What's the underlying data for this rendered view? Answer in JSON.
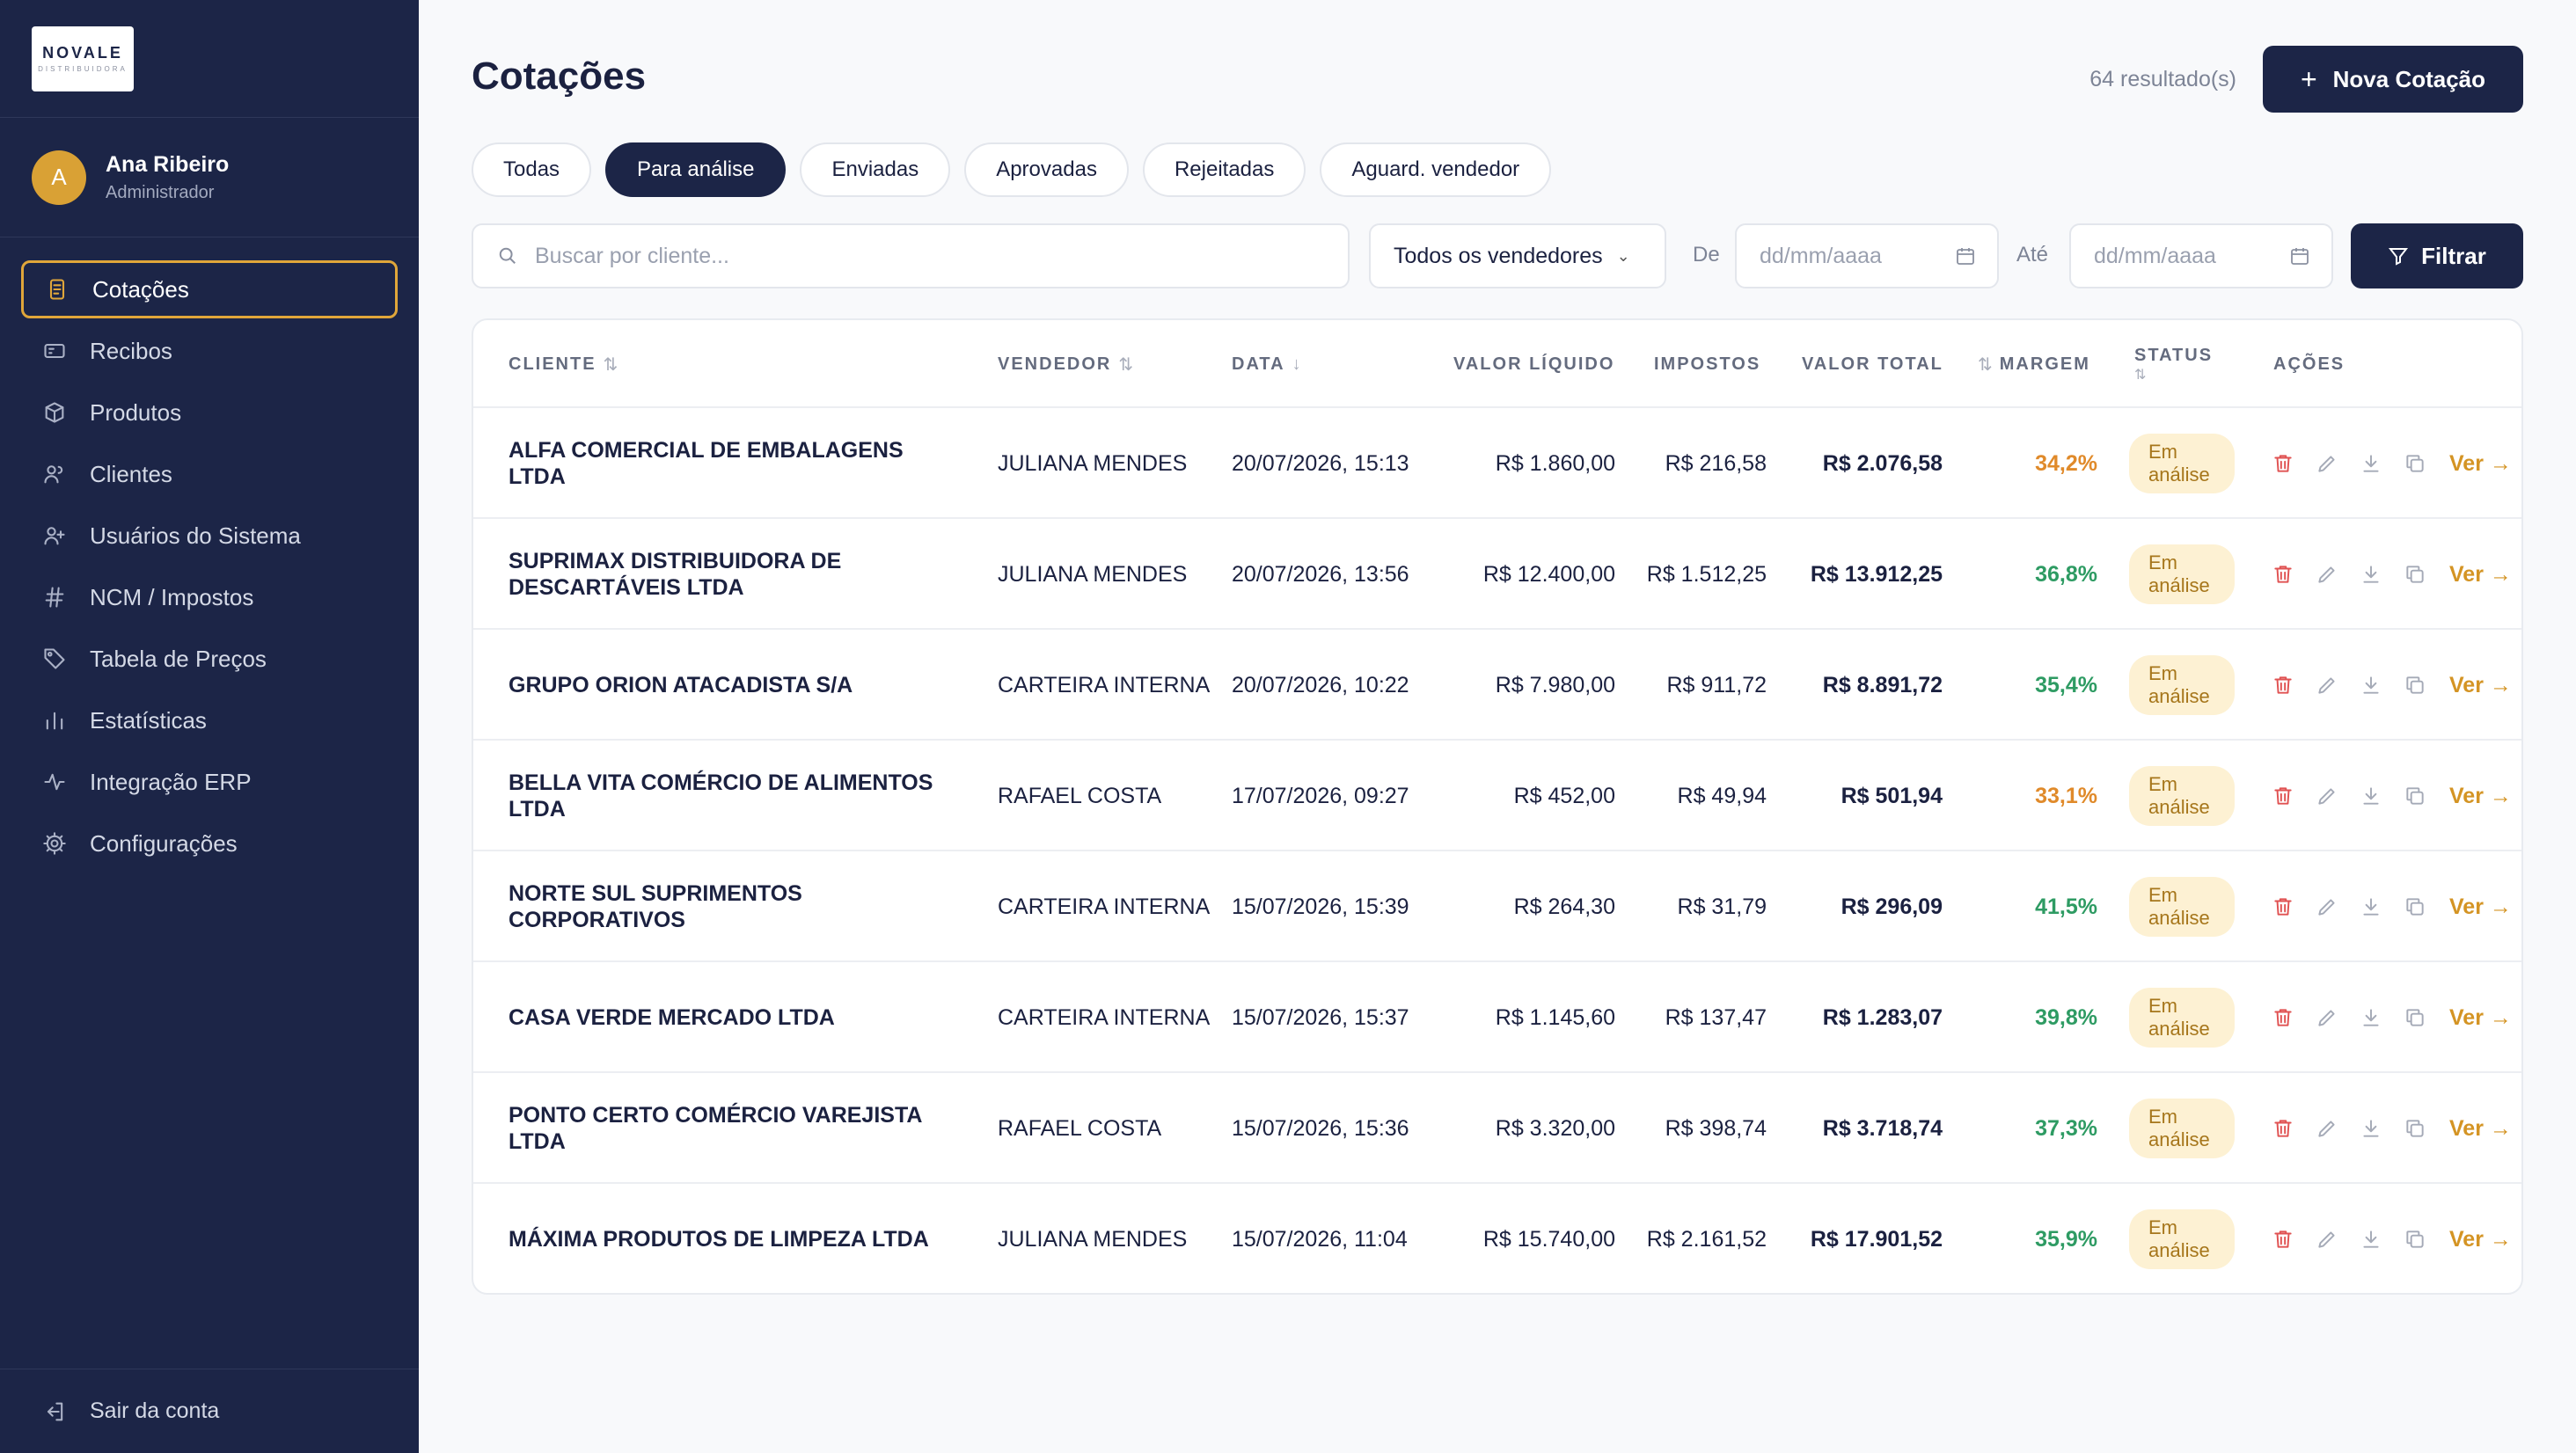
{
  "brand": {
    "name": "NOVALE",
    "sub": "DISTRIBUIDORA"
  },
  "user": {
    "initial": "A",
    "name": "Ana Ribeiro",
    "role": "Administrador"
  },
  "nav": [
    {
      "label": "Cotações",
      "icon": "document-icon",
      "active": true
    },
    {
      "label": "Recibos",
      "icon": "receipt-icon"
    },
    {
      "label": "Produtos",
      "icon": "box-icon"
    },
    {
      "label": "Clientes",
      "icon": "users-icon"
    },
    {
      "label": "Usuários do Sistema",
      "icon": "user-plus-icon"
    },
    {
      "label": "NCM / Impostos",
      "icon": "hash-icon"
    },
    {
      "label": "Tabela de Preços",
      "icon": "tag-icon"
    },
    {
      "label": "Estatísticas",
      "icon": "bar-chart-icon"
    },
    {
      "label": "Integração ERP",
      "icon": "activity-icon"
    },
    {
      "label": "Configurações",
      "icon": "gear-icon"
    }
  ],
  "logout_label": "Sair da conta",
  "page": {
    "title": "Cotações",
    "results": "64 resultado(s)",
    "new_label": "Nova Cotação",
    "new_icon": "plus"
  },
  "tabs": [
    "Todas",
    "Para análise",
    "Enviadas",
    "Aprovadas",
    "Rejeitadas",
    "Aguard. vendedor"
  ],
  "active_tab": "Para análise",
  "filters": {
    "search_placeholder": "Buscar por cliente...",
    "vendor_select": "Todos os vendedores",
    "from_label": "De",
    "to_label": "Até",
    "date_placeholder": "dd/mm/aaaa",
    "filter_label": "Filtrar"
  },
  "columns": {
    "cliente": "CLIENTE",
    "vendedor": "VENDEDOR",
    "data": "DATA",
    "valor_liquido": "VALOR LÍQUIDO",
    "impostos": "IMPOSTOS",
    "valor_total": "VALOR TOTAL",
    "margem": "MARGEM",
    "status": "STATUS",
    "acoes": "AÇÕES"
  },
  "colors": {
    "sidebar": "#1c2547",
    "accent": "#e0a63a",
    "margin_green": "#2e9b63",
    "margin_orange": "#e08a2a",
    "badge_bg": "#fdf1d3",
    "delete": "#e05252"
  },
  "rows": [
    {
      "cliente": "ALFA COMERCIAL DE EMBALAGENS LTDA",
      "vendedor": "JULIANA MENDES",
      "data": "20/07/2026, 15:13",
      "liquido": "R$ 1.860,00",
      "impostos": "R$ 216,58",
      "total": "R$ 2.076,58",
      "margem": "34,2%",
      "margem_color": "#e08a2a",
      "status": "Em análise",
      "ver": "Ver →"
    },
    {
      "cliente": "SUPRIMAX DISTRIBUIDORA DE DESCARTÁVEIS LTDA",
      "vendedor": "JULIANA MENDES",
      "data": "20/07/2026, 13:56",
      "liquido": "R$ 12.400,00",
      "impostos": "R$ 1.512,25",
      "total": "R$ 13.912,25",
      "margem": "36,8%",
      "margem_color": "#2e9b63",
      "status": "Em análise",
      "ver": "Ver →"
    },
    {
      "cliente": "GRUPO ORION ATACADISTA S/A",
      "vendedor": "CARTEIRA INTERNA",
      "data": "20/07/2026, 10:22",
      "liquido": "R$ 7.980,00",
      "impostos": "R$ 911,72",
      "total": "R$ 8.891,72",
      "margem": "35,4%",
      "margem_color": "#2e9b63",
      "status": "Em análise",
      "ver": "Ver →"
    },
    {
      "cliente": "BELLA VITA COMÉRCIO DE ALIMENTOS LTDA",
      "vendedor": "RAFAEL COSTA",
      "data": "17/07/2026, 09:27",
      "liquido": "R$ 452,00",
      "impostos": "R$ 49,94",
      "total": "R$ 501,94",
      "margem": "33,1%",
      "margem_color": "#e08a2a",
      "status": "Em análise",
      "ver": "Ver →"
    },
    {
      "cliente": "NORTE SUL SUPRIMENTOS CORPORATIVOS",
      "vendedor": "CARTEIRA INTERNA",
      "data": "15/07/2026, 15:39",
      "liquido": "R$ 264,30",
      "impostos": "R$ 31,79",
      "total": "R$ 296,09",
      "margem": "41,5%",
      "margem_color": "#2e9b63",
      "status": "Em análise",
      "ver": "Ver →"
    },
    {
      "cliente": "CASA VERDE MERCADO LTDA",
      "vendedor": "CARTEIRA INTERNA",
      "data": "15/07/2026, 15:37",
      "liquido": "R$ 1.145,60",
      "impostos": "R$ 137,47",
      "total": "R$ 1.283,07",
      "margem": "39,8%",
      "margem_color": "#2e9b63",
      "status": "Em análise",
      "ver": "Ver →"
    },
    {
      "cliente": "PONTO CERTO COMÉRCIO VAREJISTA LTDA",
      "vendedor": "RAFAEL COSTA",
      "data": "15/07/2026, 15:36",
      "liquido": "R$ 3.320,00",
      "impostos": "R$ 398,74",
      "total": "R$ 3.718,74",
      "margem": "37,3%",
      "margem_color": "#2e9b63",
      "status": "Em análise",
      "ver": "Ver →"
    },
    {
      "cliente": "MÁXIMA PRODUTOS DE LIMPEZA LTDA",
      "vendedor": "JULIANA MENDES",
      "data": "15/07/2026, 11:04",
      "liquido": "R$ 15.740,00",
      "impostos": "R$ 2.161,52",
      "total": "R$ 17.901,52",
      "margem": "35,9%",
      "margem_color": "#2e9b63",
      "status": "Em análise",
      "ver": "Ver →"
    }
  ]
}
